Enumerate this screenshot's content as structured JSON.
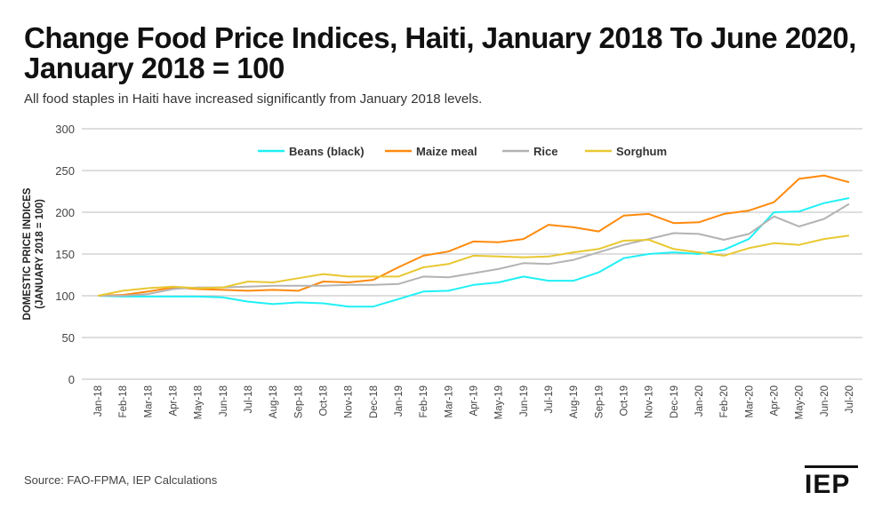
{
  "title": "Change Food Price Indices, Haiti, January 2018 To June 2020, January 2018 = 100",
  "subtitle": "All food staples in Haiti have increased significantly from January 2018 levels.",
  "source": "Source: FAO-FPMA, IEP Calculations",
  "logo_text": "IEP",
  "chart_data": {
    "type": "line",
    "ylabel": "DOMESTIC PRICE INDICES (JANUARY 2018 = 100)",
    "ylabel_lines": [
      "DOMESTIC PRICE INDICES",
      "(JANUARY 2018 = 100)"
    ],
    "ylim": [
      0,
      300
    ],
    "yticks": [
      0,
      50,
      100,
      150,
      200,
      250,
      300
    ],
    "grid": true,
    "legend_position": "top",
    "categories": [
      "Jan-18",
      "Feb-18",
      "Mar-18",
      "Apr-18",
      "May-18",
      "Jun-18",
      "Jul-18",
      "Aug-18",
      "Sep-18",
      "Oct-18",
      "Nov-18",
      "Dec-18",
      "Jan-19",
      "Feb-19",
      "Mar-19",
      "Apr-19",
      "May-19",
      "Jun-19",
      "Jul-19",
      "Aug-19",
      "Sep-19",
      "Oct-19",
      "Nov-19",
      "Dec-19",
      "Jan-20",
      "Feb-20",
      "Mar-20",
      "Apr-20",
      "May-20",
      "Jun-20",
      "Jul-20"
    ],
    "series": [
      {
        "name": "Beans (black)",
        "color": "#1ff0f5",
        "values": [
          100,
          99,
          99,
          99,
          99,
          98,
          93,
          90,
          92,
          91,
          87,
          87,
          96,
          105,
          106,
          113,
          116,
          123,
          118,
          118,
          128,
          145,
          150,
          152,
          150,
          155,
          168,
          200,
          201,
          211,
          217
        ]
      },
      {
        "name": "Maize meal",
        "color": "#ff8a0d",
        "values": [
          100,
          101,
          105,
          110,
          108,
          107,
          106,
          107,
          106,
          117,
          116,
          119,
          134,
          148,
          153,
          165,
          164,
          168,
          185,
          182,
          177,
          196,
          198,
          187,
          188,
          198,
          202,
          212,
          240,
          244,
          236
        ]
      },
      {
        "name": "Rice",
        "color": "#b3b3b3",
        "values": [
          100,
          100,
          102,
          108,
          110,
          110,
          111,
          112,
          112,
          112,
          113,
          113,
          114,
          123,
          122,
          127,
          132,
          139,
          138,
          143,
          152,
          161,
          168,
          175,
          174,
          167,
          174,
          195,
          183,
          192,
          210
        ]
      },
      {
        "name": "Sorghum",
        "color": "#e8c832",
        "values": [
          100,
          106,
          109,
          111,
          109,
          110,
          117,
          116,
          121,
          126,
          123,
          123,
          123,
          134,
          138,
          148,
          147,
          146,
          147,
          152,
          156,
          166,
          167,
          156,
          152,
          148,
          157,
          163,
          161,
          168,
          172
        ]
      }
    ]
  }
}
